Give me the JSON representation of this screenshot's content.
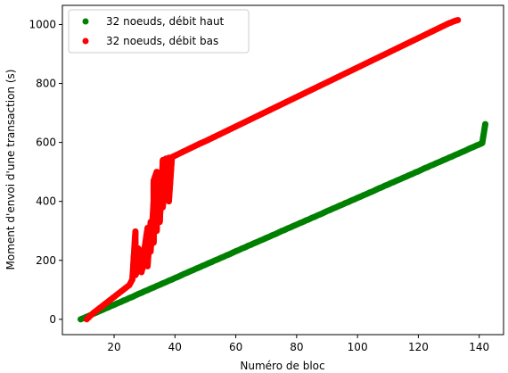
{
  "chart_data": {
    "type": "scatter",
    "title": "",
    "xlabel": "Numéro de bloc",
    "ylabel": "Moment d'envoi d'une transaction (s)",
    "xlim": [
      3,
      148
    ],
    "ylim": [
      -52,
      1065
    ],
    "xticks": [
      "20",
      "40",
      "60",
      "80",
      "100",
      "120",
      "140"
    ],
    "yticks": [
      "0",
      "200",
      "400",
      "600",
      "800",
      "1000"
    ],
    "grid": false,
    "legend_position": "top-left",
    "series": [
      {
        "name": "32 noeuds, débit haut",
        "color": "#008000",
        "points": [
          [
            9,
            0
          ],
          [
            10,
            4
          ],
          [
            11,
            9
          ],
          [
            12,
            13
          ],
          [
            13,
            18
          ],
          [
            14,
            22
          ],
          [
            15,
            27
          ],
          [
            16,
            31
          ],
          [
            17,
            36
          ],
          [
            18,
            40
          ],
          [
            19,
            45
          ],
          [
            20,
            49
          ],
          [
            21,
            54
          ],
          [
            22,
            58
          ],
          [
            23,
            63
          ],
          [
            24,
            67
          ],
          [
            25,
            72
          ],
          [
            26,
            76
          ],
          [
            27,
            81
          ],
          [
            28,
            86
          ],
          [
            29,
            90
          ],
          [
            30,
            95
          ],
          [
            31,
            99
          ],
          [
            32,
            104
          ],
          [
            33,
            108
          ],
          [
            34,
            113
          ],
          [
            35,
            117
          ],
          [
            36,
            122
          ],
          [
            37,
            126
          ],
          [
            38,
            131
          ],
          [
            39,
            135
          ],
          [
            40,
            140
          ],
          [
            41,
            144
          ],
          [
            42,
            149
          ],
          [
            43,
            154
          ],
          [
            44,
            158
          ],
          [
            45,
            163
          ],
          [
            46,
            167
          ],
          [
            47,
            172
          ],
          [
            48,
            176
          ],
          [
            49,
            181
          ],
          [
            50,
            185
          ],
          [
            51,
            190
          ],
          [
            52,
            194
          ],
          [
            53,
            199
          ],
          [
            54,
            203
          ],
          [
            55,
            208
          ],
          [
            56,
            212
          ],
          [
            57,
            217
          ],
          [
            58,
            221
          ],
          [
            59,
            226
          ],
          [
            60,
            231
          ],
          [
            61,
            235
          ],
          [
            62,
            240
          ],
          [
            63,
            244
          ],
          [
            64,
            249
          ],
          [
            65,
            253
          ],
          [
            66,
            258
          ],
          [
            67,
            262
          ],
          [
            68,
            267
          ],
          [
            69,
            271
          ],
          [
            70,
            276
          ],
          [
            71,
            280
          ],
          [
            72,
            285
          ],
          [
            73,
            289
          ],
          [
            74,
            294
          ],
          [
            75,
            299
          ],
          [
            76,
            303
          ],
          [
            77,
            308
          ],
          [
            78,
            312
          ],
          [
            79,
            317
          ],
          [
            80,
            321
          ],
          [
            81,
            326
          ],
          [
            82,
            330
          ],
          [
            83,
            335
          ],
          [
            84,
            339
          ],
          [
            85,
            344
          ],
          [
            86,
            348
          ],
          [
            87,
            353
          ],
          [
            88,
            357
          ],
          [
            89,
            362
          ],
          [
            90,
            367
          ],
          [
            91,
            371
          ],
          [
            92,
            376
          ],
          [
            93,
            380
          ],
          [
            94,
            385
          ],
          [
            95,
            389
          ],
          [
            96,
            394
          ],
          [
            97,
            398
          ],
          [
            98,
            403
          ],
          [
            99,
            407
          ],
          [
            100,
            412
          ],
          [
            101,
            416
          ],
          [
            102,
            421
          ],
          [
            103,
            425
          ],
          [
            104,
            430
          ],
          [
            105,
            434
          ],
          [
            106,
            439
          ],
          [
            107,
            444
          ],
          [
            108,
            448
          ],
          [
            109,
            453
          ],
          [
            110,
            457
          ],
          [
            111,
            462
          ],
          [
            112,
            466
          ],
          [
            113,
            471
          ],
          [
            114,
            475
          ],
          [
            115,
            480
          ],
          [
            116,
            484
          ],
          [
            117,
            489
          ],
          [
            118,
            493
          ],
          [
            119,
            498
          ],
          [
            120,
            502
          ],
          [
            121,
            507
          ],
          [
            122,
            512
          ],
          [
            123,
            516
          ],
          [
            124,
            521
          ],
          [
            125,
            525
          ],
          [
            126,
            530
          ],
          [
            127,
            534
          ],
          [
            128,
            539
          ],
          [
            129,
            543
          ],
          [
            130,
            548
          ],
          [
            131,
            552
          ],
          [
            132,
            557
          ],
          [
            133,
            561
          ],
          [
            134,
            566
          ],
          [
            135,
            570
          ],
          [
            136,
            575
          ],
          [
            137,
            580
          ],
          [
            138,
            584
          ],
          [
            139,
            589
          ],
          [
            140,
            593
          ],
          [
            141,
            598
          ],
          [
            142,
            662
          ]
        ]
      },
      {
        "name": "32 noeuds, débit bas",
        "color": "#ff0000",
        "points": [
          [
            11,
            0
          ],
          [
            12,
            10
          ],
          [
            13,
            20
          ],
          [
            14,
            28
          ],
          [
            15,
            36
          ],
          [
            16,
            44
          ],
          [
            17,
            52
          ],
          [
            18,
            60
          ],
          [
            19,
            68
          ],
          [
            20,
            76
          ],
          [
            21,
            84
          ],
          [
            22,
            92
          ],
          [
            23,
            100
          ],
          [
            24,
            108
          ],
          [
            25,
            116
          ],
          [
            26,
            135
          ],
          [
            27,
            298
          ],
          [
            27,
            150
          ],
          [
            28,
            170
          ],
          [
            28,
            240
          ],
          [
            29,
            190
          ],
          [
            29,
            160
          ],
          [
            30,
            200
          ],
          [
            30,
            240
          ],
          [
            31,
            310
          ],
          [
            31,
            180
          ],
          [
            32,
            330
          ],
          [
            32,
            230
          ],
          [
            33,
            400
          ],
          [
            33,
            260
          ],
          [
            33,
            470
          ],
          [
            34,
            500
          ],
          [
            34,
            300
          ],
          [
            34,
            380
          ],
          [
            35,
            470
          ],
          [
            35,
            420
          ],
          [
            35,
            330
          ],
          [
            36,
            540
          ],
          [
            36,
            460
          ],
          [
            36,
            380
          ],
          [
            37,
            545
          ],
          [
            37,
            500
          ],
          [
            37,
            420
          ],
          [
            38,
            548
          ],
          [
            38,
            470
          ],
          [
            38,
            400
          ],
          [
            39,
            550
          ],
          [
            40,
            555
          ],
          [
            41,
            560
          ],
          [
            42,
            565
          ],
          [
            44,
            575
          ],
          [
            46,
            585
          ],
          [
            48,
            595
          ],
          [
            50,
            604
          ],
          [
            52,
            614
          ],
          [
            54,
            624
          ],
          [
            56,
            634
          ],
          [
            58,
            644
          ],
          [
            60,
            654
          ],
          [
            62,
            664
          ],
          [
            64,
            674
          ],
          [
            66,
            684
          ],
          [
            68,
            694
          ],
          [
            70,
            704
          ],
          [
            72,
            714
          ],
          [
            74,
            724
          ],
          [
            76,
            734
          ],
          [
            78,
            744
          ],
          [
            80,
            754
          ],
          [
            82,
            764
          ],
          [
            84,
            774
          ],
          [
            86,
            784
          ],
          [
            88,
            794
          ],
          [
            90,
            804
          ],
          [
            92,
            814
          ],
          [
            94,
            824
          ],
          [
            96,
            834
          ],
          [
            98,
            844
          ],
          [
            100,
            854
          ],
          [
            102,
            864
          ],
          [
            104,
            874
          ],
          [
            106,
            884
          ],
          [
            108,
            894
          ],
          [
            110,
            904
          ],
          [
            112,
            914
          ],
          [
            114,
            924
          ],
          [
            116,
            934
          ],
          [
            118,
            944
          ],
          [
            120,
            954
          ],
          [
            122,
            964
          ],
          [
            124,
            974
          ],
          [
            126,
            984
          ],
          [
            128,
            994
          ],
          [
            130,
            1004
          ],
          [
            132,
            1012
          ],
          [
            133,
            1015
          ]
        ]
      }
    ]
  }
}
